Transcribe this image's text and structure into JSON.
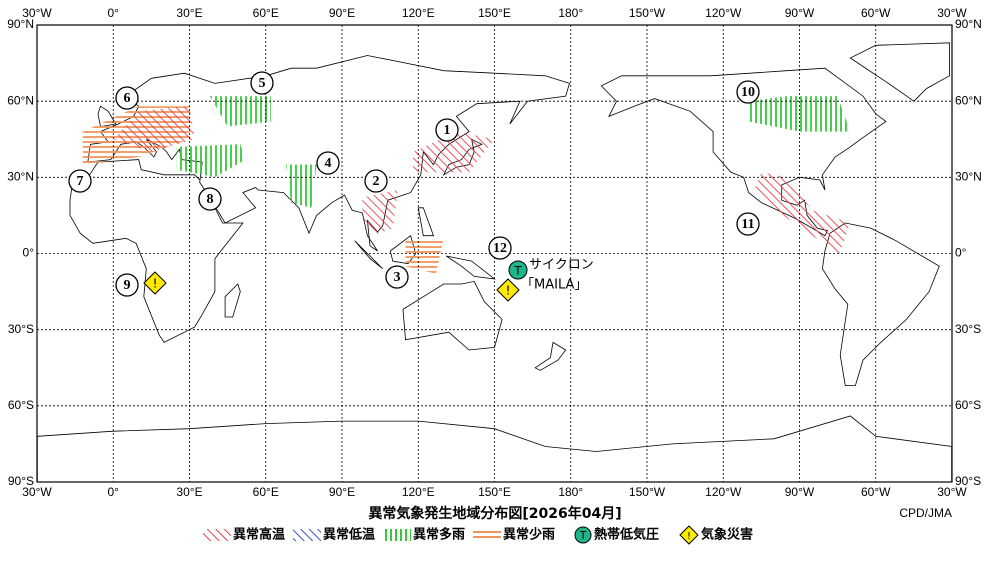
{
  "map": {
    "lon_labels": [
      "30°W",
      "0°",
      "30°E",
      "60°E",
      "90°E",
      "120°E",
      "150°E",
      "180°",
      "150°W",
      "120°W",
      "90°W",
      "60°W",
      "30°W"
    ],
    "lat_labels": [
      "90°N",
      "60°N",
      "30°N",
      "0°",
      "30°S",
      "60°S",
      "90°S"
    ],
    "regions": [
      "1",
      "2",
      "3",
      "4",
      "5",
      "6",
      "7",
      "8",
      "9",
      "10",
      "11",
      "12"
    ],
    "cyclone": {
      "icon": "T",
      "name": "サイクロン",
      "label": "「MAILA」"
    },
    "disaster_icon": "!"
  },
  "title": "異常気象発生地域分布図[2026年04月]",
  "credit": "CPD/JMA",
  "legend": [
    "異常高温",
    "異常低温",
    "異常多雨",
    "異常少雨",
    "熱帯低気圧",
    "気象災害"
  ]
}
